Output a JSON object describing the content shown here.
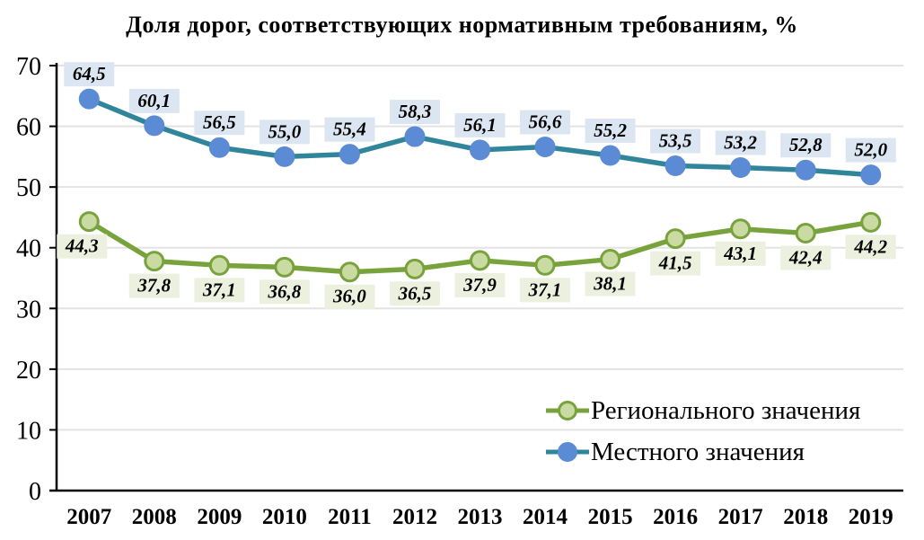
{
  "title": "Доля дорог, соответствующих нормативным требованиям, %",
  "chart_data": {
    "type": "line",
    "categories": [
      "2007",
      "2008",
      "2009",
      "2010",
      "2011",
      "2012",
      "2013",
      "2014",
      "2015",
      "2016",
      "2017",
      "2018",
      "2019"
    ],
    "series": [
      {
        "name": "Регионального значения",
        "values": [
          44.3,
          37.8,
          37.1,
          36.8,
          36.0,
          36.5,
          37.9,
          37.1,
          38.1,
          41.5,
          43.1,
          42.4,
          44.2
        ],
        "line_color": "#78A33C",
        "marker_fill": "#C9DBA3",
        "marker_border": "#78A33C",
        "label_bg": "#EBF1DE",
        "label_position": "below"
      },
      {
        "name": "Местного значения",
        "values": [
          64.5,
          60.1,
          56.5,
          55.0,
          55.4,
          58.3,
          56.1,
          56.6,
          55.2,
          53.5,
          53.2,
          52.8,
          52.0
        ],
        "line_color": "#31859B",
        "marker_fill": "#5B8BD5",
        "marker_border": "#5B8BD5",
        "label_bg": "#DCE6F2",
        "label_position": "above"
      }
    ],
    "ylim": [
      0,
      70
    ],
    "ytick_step": 10,
    "y_tick_labels": [
      "0",
      "10",
      "20",
      "30",
      "40",
      "50",
      "60",
      "70"
    ],
    "grid": true,
    "gridline_color": "#E3E3E3",
    "axis_color": "#000000",
    "label_text_color": "#000000",
    "decimal_separator": ",",
    "legend_position": "bottom-right-inside"
  }
}
